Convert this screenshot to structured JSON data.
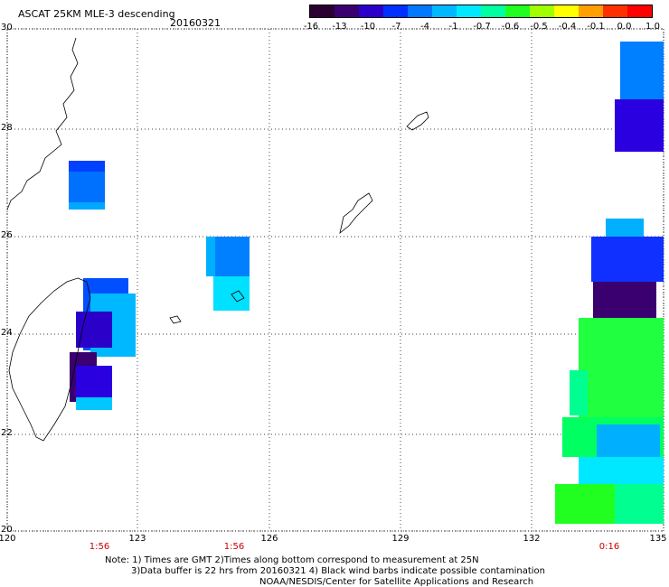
{
  "header": {
    "title": "ASCAT 25KM MLE-3 descending",
    "date": "20160321"
  },
  "colorbar": {
    "labels": [
      "-16",
      "-13",
      "-10",
      "-7",
      "-4",
      "-1",
      "-0.7",
      "-0.6",
      "-0.5",
      "-0.4",
      "-0.1",
      "0.0",
      "1.0"
    ],
    "colors": [
      "#2a0033",
      "#3a0070",
      "#2b00c8",
      "#0030ff",
      "#0078ff",
      "#00b8ff",
      "#00e8ff",
      "#00ffa0",
      "#20ff20",
      "#a0ff00",
      "#ffff00",
      "#ffa000",
      "#ff3000",
      "#ff0000"
    ]
  },
  "axes": {
    "lat_labels": [
      "30",
      "28",
      "26",
      "24",
      "22",
      "20"
    ],
    "lon_labels": [
      "120",
      "123",
      "126",
      "129",
      "132",
      "135"
    ]
  },
  "pass_times": [
    "1:56",
    "1:56",
    "0:16"
  ],
  "notes": {
    "line1": "Note: 1) Times are GMT 2)Times along bottom correspond to measurement at 25N",
    "line2": "3)Data buffer is 22 hrs from 20160321 4) Black wind barbs indicate possible contamination",
    "line3": "NOAA/NESDIS/Center for Satellite Applications and Research"
  }
}
